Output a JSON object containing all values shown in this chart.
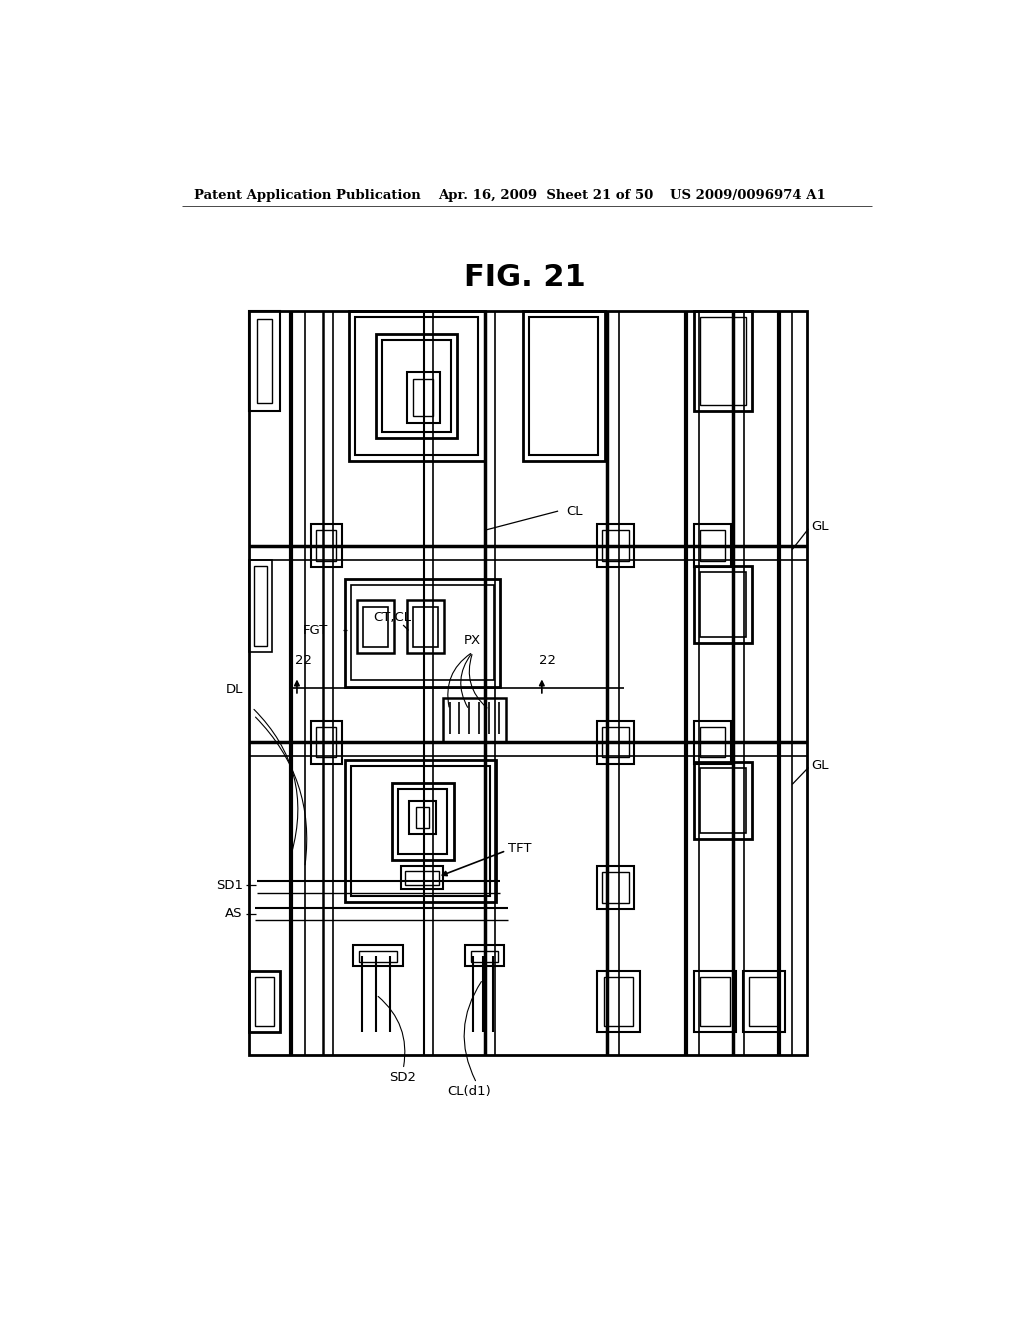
{
  "bg_color": "#ffffff",
  "line_color": "#000000",
  "header_text": "Patent Application Publication",
  "header_date": "Apr. 16, 2009  Sheet 21 of 50",
  "header_patent": "US 2009/0096974 A1",
  "fig_title": "FIG. 21"
}
